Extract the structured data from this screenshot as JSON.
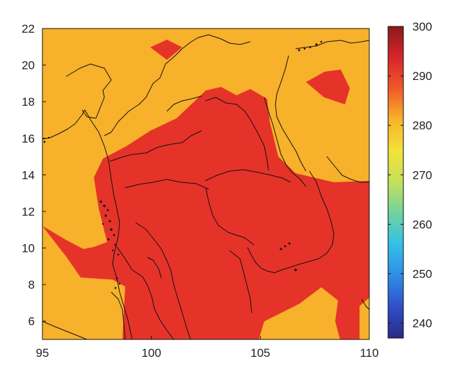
{
  "chart_data": {
    "type": "heatmap",
    "title": "",
    "xlabel": "",
    "ylabel": "",
    "xlim": [
      95,
      110
    ],
    "ylim": [
      5,
      22
    ],
    "x_ticks": [
      "95",
      "100",
      "105",
      "110"
    ],
    "y_ticks": [
      "6",
      "8",
      "10",
      "12",
      "14",
      "16",
      "18",
      "20",
      "22"
    ],
    "colorbar": {
      "range": [
        237,
        300
      ],
      "ticks": [
        "240",
        "250",
        "260",
        "270",
        "280",
        "290",
        "300"
      ],
      "colormap": [
        "#2b2a85",
        "#2f4fc9",
        "#2f8de6",
        "#33c0e8",
        "#6fd3a0",
        "#c4e05a",
        "#f2e23a",
        "#f7b52a",
        "#ef5a2a",
        "#d8252a",
        "#8b1a1a"
      ]
    },
    "field_levels": [
      {
        "name": "orange",
        "value": 283,
        "color": "#F7B12A"
      },
      {
        "name": "red",
        "value": 291,
        "color": "#E5332A"
      }
    ],
    "grid": false
  }
}
